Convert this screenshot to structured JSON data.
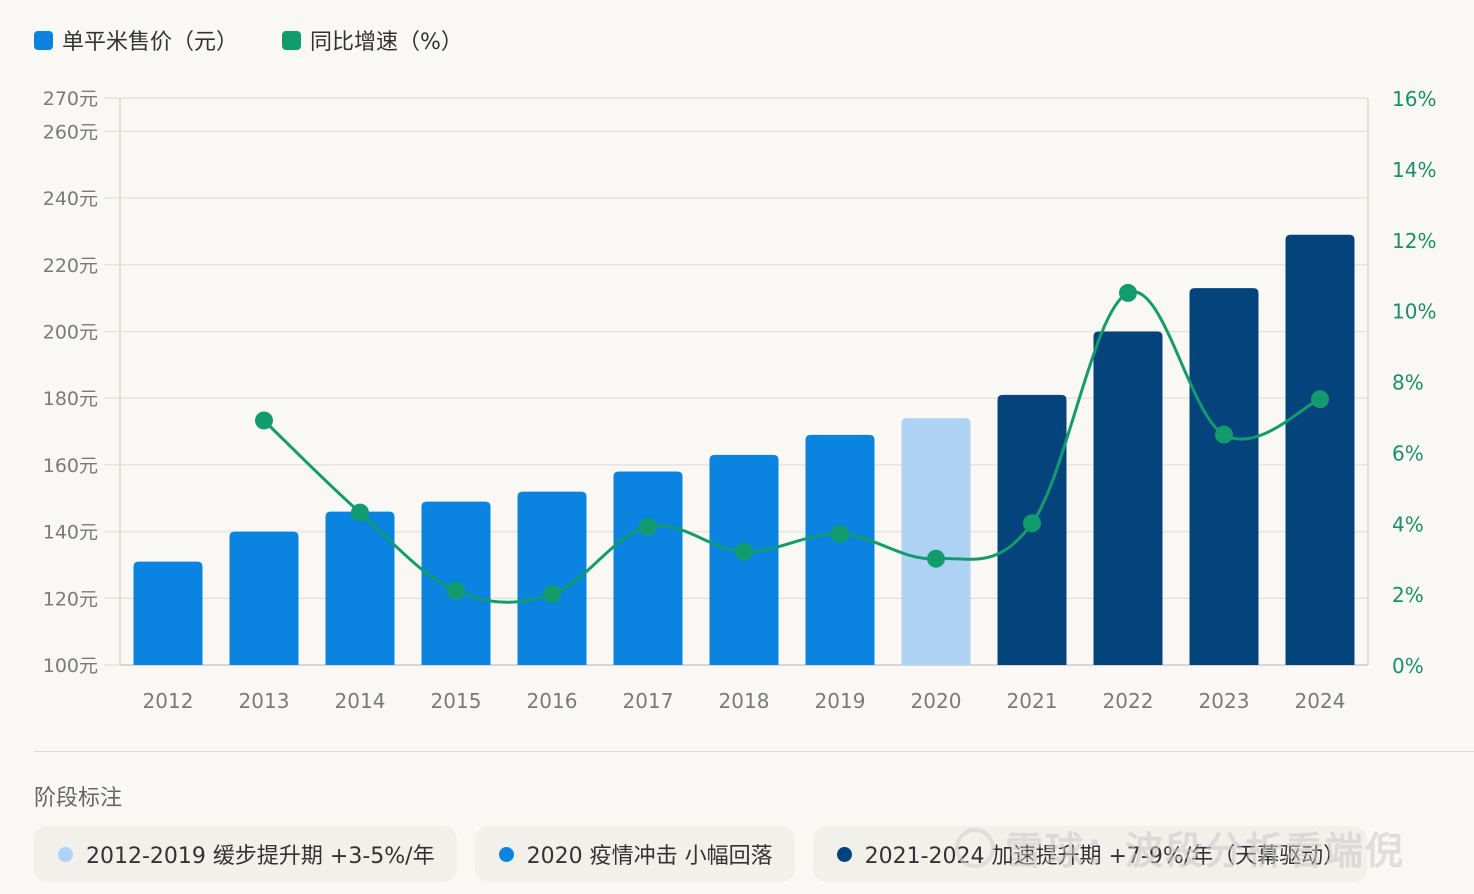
{
  "legend": {
    "items": [
      {
        "label": "单平米售价（元）",
        "color": "#0a84e0",
        "icon": "square-swatch"
      },
      {
        "label": "同比增速（%）",
        "color": "#129c6e",
        "icon": "square-swatch"
      }
    ]
  },
  "chart_data": {
    "type": "bar+line",
    "categories": [
      "2012",
      "2013",
      "2014",
      "2015",
      "2016",
      "2017",
      "2018",
      "2019",
      "2020",
      "2021",
      "2022",
      "2023",
      "2024"
    ],
    "series": [
      {
        "name": "单平米售价（元）",
        "type": "bar",
        "axis": "left",
        "values": [
          131,
          140,
          146,
          149,
          152,
          158,
          163,
          169,
          174,
          181,
          200,
          213,
          229
        ],
        "colors": [
          "#0a84e0",
          "#0a84e0",
          "#0a84e0",
          "#0a84e0",
          "#0a84e0",
          "#0a84e0",
          "#0a84e0",
          "#0a84e0",
          "#aed3f5",
          "#04437c",
          "#04437c",
          "#04437c",
          "#04437c"
        ]
      },
      {
        "name": "同比增速（%）",
        "type": "line",
        "axis": "right",
        "smooth": true,
        "color": "#129c6e",
        "values": [
          null,
          6.9,
          4.3,
          2.1,
          2.0,
          3.9,
          3.2,
          3.7,
          3.0,
          4.0,
          10.5,
          6.5,
          7.5
        ]
      }
    ],
    "left_axis": {
      "ticks": [
        100,
        120,
        140,
        160,
        180,
        200,
        220,
        240,
        260,
        270
      ],
      "tick_labels": [
        "100元",
        "120元",
        "140元",
        "160元",
        "180元",
        "200元",
        "220元",
        "240元",
        "260元",
        "270元"
      ],
      "range": [
        100,
        270
      ]
    },
    "right_axis": {
      "ticks": [
        0,
        2,
        4,
        6,
        8,
        10,
        12,
        14,
        16
      ],
      "tick_labels": [
        "0%",
        "2%",
        "4%",
        "6%",
        "8%",
        "10%",
        "12%",
        "14%",
        "16%"
      ],
      "range": [
        0,
        16
      ]
    },
    "xlabel": "",
    "ylabel": "",
    "grid": true,
    "legend_position": "top-left"
  },
  "phases": {
    "title": "阶段标注",
    "items": [
      {
        "label": "2012-2019  缓步提升期  +3-5%/年",
        "dot_color": "#aed3f5"
      },
      {
        "label": "2020  疫情冲击  小幅回落",
        "dot_color": "#0a84e0"
      },
      {
        "label": "2021-2024  加速提升期  +7-9%/年（天幕驱动）",
        "dot_color": "#04437c"
      }
    ]
  },
  "watermark": {
    "text": "雪球：波段分析看端倪"
  }
}
